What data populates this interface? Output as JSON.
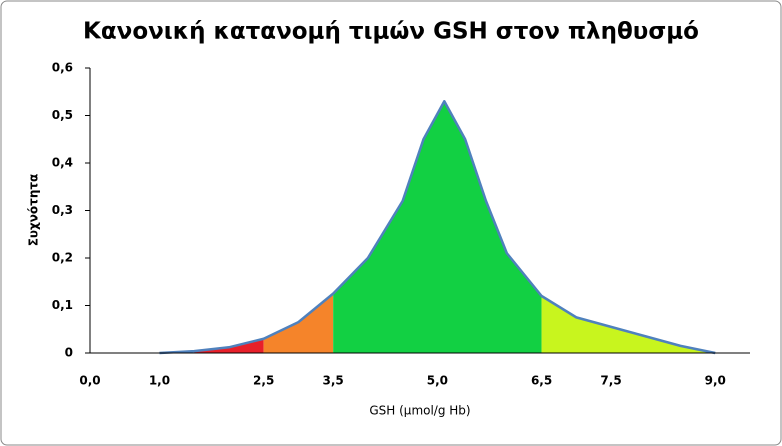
{
  "chart_data": {
    "type": "area",
    "title": "Κανονική κατανομή τιμών GSH στον πληθυσμό",
    "x_label": "GSH (μmol/g Hb)",
    "y_label": "Συχνότητα",
    "x": [
      1.0,
      1.5,
      2.0,
      2.5,
      3.0,
      3.5,
      4.0,
      4.5,
      4.8,
      5.1,
      5.4,
      5.7,
      6.0,
      6.5,
      7.0,
      7.5,
      8.0,
      8.5,
      9.0
    ],
    "values": [
      0,
      0.004,
      0.012,
      0.03,
      0.065,
      0.125,
      0.2,
      0.32,
      0.45,
      0.53,
      0.45,
      0.32,
      0.21,
      0.12,
      0.075,
      0.055,
      0.035,
      0.015,
      0
    ],
    "line_color": "#4f81bd",
    "regions": [
      {
        "from": 1.5,
        "to": 2.5,
        "color": "#e8202a"
      },
      {
        "from": 2.5,
        "to": 3.5,
        "color": "#f5842a"
      },
      {
        "from": 3.5,
        "to": 6.5,
        "color": "#12d043"
      },
      {
        "from": 6.5,
        "to": 9.0,
        "color": "#c8f51e"
      }
    ],
    "xlim": [
      0,
      9.5
    ],
    "ylim": [
      0,
      0.6
    ],
    "xticks": [
      {
        "value": 0,
        "label": "0,0"
      },
      {
        "value": 1,
        "label": "1,0"
      },
      {
        "value": 2.5,
        "label": "2,5"
      },
      {
        "value": 3.5,
        "label": "3,5"
      },
      {
        "value": 5,
        "label": "5,0"
      },
      {
        "value": 6.5,
        "label": "6,5"
      },
      {
        "value": 7.5,
        "label": "7,5"
      },
      {
        "value": 9,
        "label": "9,0"
      }
    ],
    "yticks": [
      0,
      {
        "value": 0.1,
        "label": "0,1"
      },
      {
        "value": 0.2,
        "label": "0,2"
      },
      {
        "value": 0.3,
        "label": "0,3"
      },
      {
        "value": 0.4,
        "label": "0,4"
      },
      {
        "value": 0.5,
        "label": "0,5"
      },
      {
        "value": 0.6,
        "label": "0,6"
      }
    ]
  }
}
